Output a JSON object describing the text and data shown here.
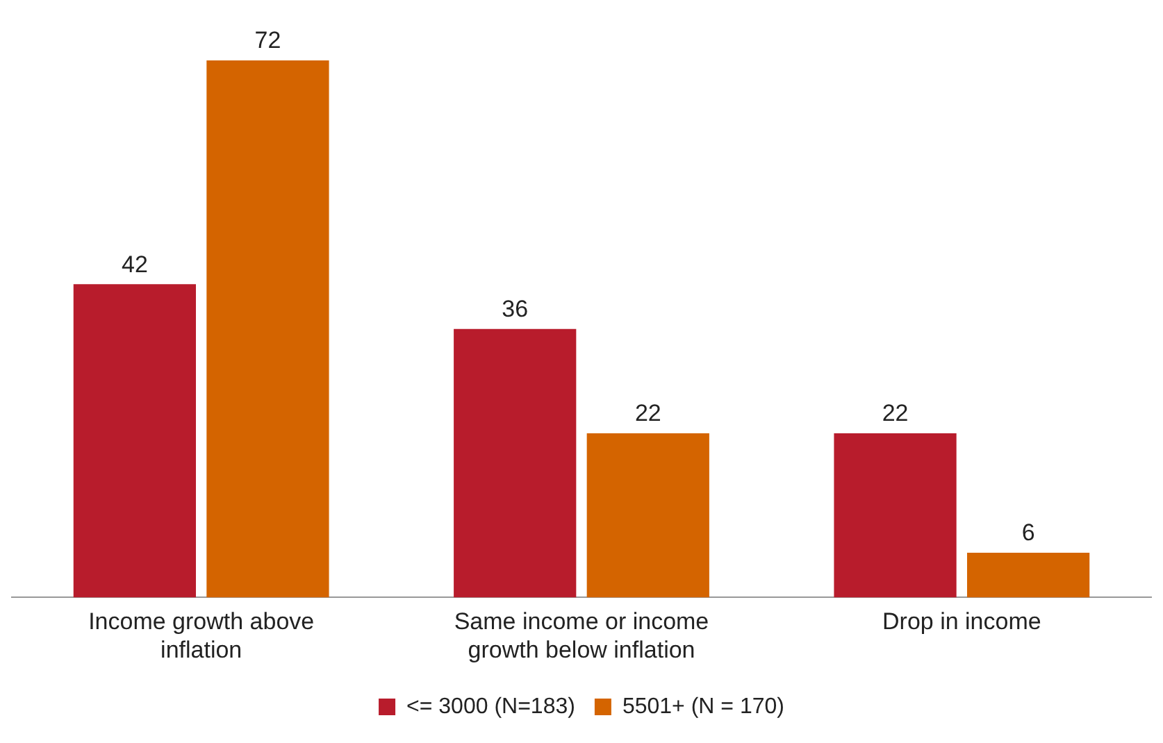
{
  "chart_data": {
    "type": "bar",
    "categories": [
      "Income growth above inflation",
      "Same income or income growth below inflation",
      "Drop in income"
    ],
    "series": [
      {
        "name": "<= 3000 (N=183)",
        "color": "#b81c2c",
        "values": [
          42,
          36,
          22
        ]
      },
      {
        "name": "5501+ (N = 170)",
        "color": "#d46400",
        "values": [
          72,
          22,
          6
        ]
      }
    ],
    "data_labels": true,
    "grid": false,
    "legend": "bottom"
  }
}
